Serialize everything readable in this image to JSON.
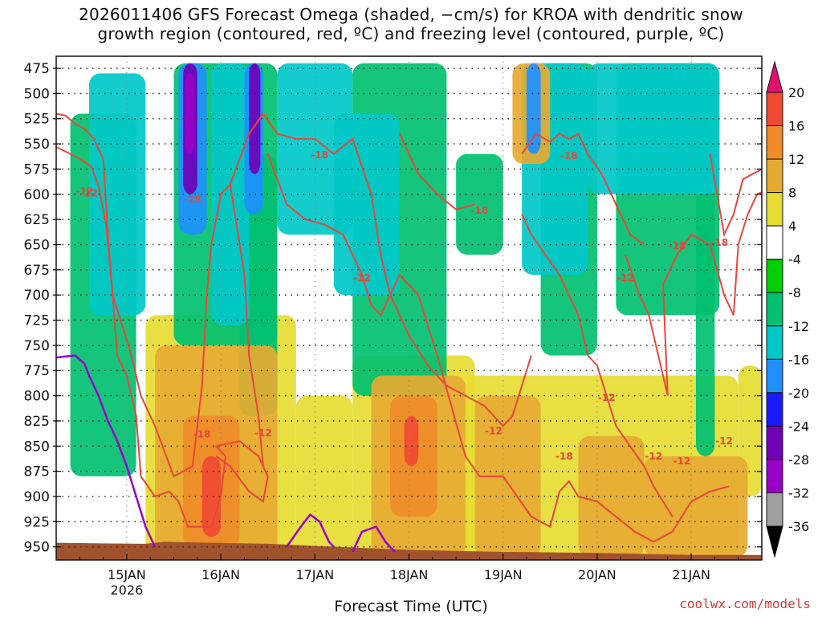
{
  "title_line1": "2026011406 GFS Forecast Omega (shaded, −cm/s) for KROA with dendritic snow",
  "title_line2": "growth region (contoured, red, ºC) and freezing level (contoured, purple, ºC)",
  "xlabel": "Forecast Time (UTC)",
  "credit": "coolwx.com/models",
  "chart_data": {
    "type": "heatmap",
    "title": "2026011406 GFS Forecast Omega (shaded, −cm/s) for KROA with dendritic snow growth region (contoured, red, ºC) and freezing level (contoured, purple, ºC)",
    "xlabel": "Forecast Time (UTC)",
    "ylabel": "",
    "x_tick_labels": [
      "15JAN",
      "16JAN",
      "17JAN",
      "18JAN",
      "19JAN",
      "20JAN",
      "21JAN"
    ],
    "x_tick_sublabel": "2026",
    "x_range_days": [
      14.25,
      21.75
    ],
    "y_ticks": [
      475,
      500,
      525,
      550,
      575,
      600,
      625,
      650,
      675,
      700,
      725,
      750,
      775,
      800,
      825,
      850,
      875,
      900,
      925,
      950
    ],
    "y_range": [
      463,
      963
    ],
    "grid": true,
    "colorbar": {
      "levels": [
        -36,
        -32,
        -28,
        -24,
        -20,
        -16,
        -12,
        -8,
        -4,
        4,
        8,
        12,
        16,
        20
      ],
      "tick_labels": [
        "20",
        "16",
        "12",
        "8",
        "4",
        "-4",
        "-8",
        "-12",
        "-16",
        "-20",
        "-24",
        "-28",
        "-32",
        "-36"
      ],
      "colors": {
        "below": "#000000",
        "m36_m32": "#a0a0a0",
        "m32_m28": "#9a00c8",
        "m28_m24": "#7000b8",
        "m24_m20": "#1a1aff",
        "m20_m16": "#1e90ff",
        "m16_m12": "#00c8c8",
        "m12_m8": "#00c070",
        "m8_m4": "#00d000",
        "m4_4": "#ffffff",
        "p4_8": "#e6dc32",
        "p8_12": "#e6aa32",
        "p12_16": "#f08c28",
        "p16_20": "#f04a32",
        "above": "#e0106e"
      }
    },
    "contour_labels_red": [
      "-12",
      "-18",
      "-18",
      "-12",
      "-18",
      "-12",
      "-18",
      "-12",
      "-12",
      "-18",
      "-18",
      "-12",
      "-18",
      "-12",
      "-18",
      "-12",
      "-12",
      "-12"
    ],
    "contour_labels_purple": [],
    "omega_regions": [
      {
        "value": -12,
        "cells": [
          [
            14.6,
            15.2,
            480,
            720
          ],
          [
            15.9,
            16.3,
            470,
            730
          ],
          [
            16.6,
            17.4,
            470,
            640
          ],
          [
            17.2,
            17.9,
            520,
            700
          ],
          [
            19.2,
            19.9,
            470,
            680
          ],
          [
            19.9,
            21.3,
            470,
            600
          ]
        ]
      },
      {
        "value": -8,
        "cells": [
          [
            14.4,
            15.1,
            520,
            880
          ],
          [
            15.5,
            16.6,
            470,
            750
          ],
          [
            16.2,
            16.6,
            560,
            820
          ],
          [
            17.4,
            18.4,
            470,
            800
          ],
          [
            18.5,
            19.0,
            560,
            660
          ],
          [
            19.4,
            20.0,
            470,
            760
          ],
          [
            20.2,
            21.3,
            470,
            720
          ],
          [
            21.05,
            21.25,
            500,
            860
          ]
        ]
      },
      {
        "value": -16,
        "cells": [
          [
            15.55,
            15.85,
            470,
            640
          ],
          [
            16.25,
            16.45,
            470,
            620
          ],
          [
            19.25,
            19.4,
            470,
            560
          ]
        ]
      },
      {
        "value": -24,
        "cells": [
          [
            15.6,
            15.75,
            470,
            600
          ],
          [
            16.3,
            16.42,
            470,
            580
          ]
        ]
      },
      {
        "value": -28,
        "cells": [
          [
            15.62,
            15.72,
            480,
            560
          ]
        ]
      },
      {
        "value": 8,
        "cells": [
          [
            15.3,
            16.6,
            750,
            960
          ],
          [
            17.6,
            18.6,
            780,
            960
          ],
          [
            18.7,
            19.4,
            800,
            960
          ],
          [
            19.8,
            20.5,
            840,
            960
          ],
          [
            20.5,
            21.6,
            860,
            960
          ],
          [
            19.1,
            19.5,
            470,
            570
          ]
        ]
      },
      {
        "value": 6,
        "cells": [
          [
            15.2,
            16.8,
            720,
            960
          ],
          [
            16.8,
            17.4,
            800,
            960
          ],
          [
            17.4,
            18.7,
            760,
            960
          ],
          [
            18.6,
            21.5,
            780,
            960
          ],
          [
            21.5,
            21.75,
            770,
            900
          ]
        ]
      },
      {
        "value": 12,
        "cells": [
          [
            15.6,
            16.2,
            820,
            950
          ],
          [
            17.8,
            18.3,
            800,
            920
          ]
        ]
      },
      {
        "value": 16,
        "cells": [
          [
            15.8,
            16.0,
            860,
            940
          ],
          [
            17.95,
            18.1,
            820,
            870
          ]
        ]
      }
    ]
  }
}
